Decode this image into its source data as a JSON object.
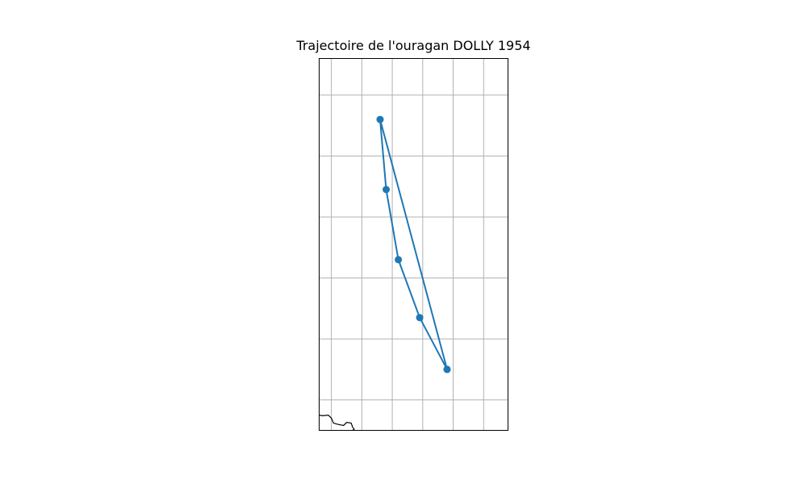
{
  "chart_data": {
    "type": "line",
    "title": "Trajectoire de l'ouragan DOLLY 1954",
    "xlabel": "",
    "ylabel": "",
    "grid": true,
    "xlim": [
      -76.4,
      -70.2
    ],
    "ylim": [
      22.5,
      28.6
    ],
    "gridlines_x": [
      -76,
      -75,
      -74,
      -73,
      -72,
      -71
    ],
    "gridlines_y": [
      23,
      24,
      25,
      26,
      27,
      28
    ],
    "series": [
      {
        "color": "#1f77b4",
        "points": [
          {
            "lon": -72.2,
            "lat": 23.5
          },
          {
            "lon": -73.1,
            "lat": 24.35
          },
          {
            "lon": -73.8,
            "lat": 25.3
          },
          {
            "lon": -74.2,
            "lat": 26.45
          },
          {
            "lon": -74.4,
            "lat": 27.6
          },
          {
            "lon": -72.2,
            "lat": 23.5
          }
        ]
      }
    ],
    "coastline": [
      {
        "lon": -76.4,
        "lat": 22.75
      },
      {
        "lon": -76.3,
        "lat": 22.74
      },
      {
        "lon": -76.1,
        "lat": 22.75
      },
      {
        "lon": -76.0,
        "lat": 22.7
      },
      {
        "lon": -75.93,
        "lat": 22.62
      },
      {
        "lon": -75.8,
        "lat": 22.6
      },
      {
        "lon": -75.6,
        "lat": 22.58
      },
      {
        "lon": -75.5,
        "lat": 22.63
      },
      {
        "lon": -75.35,
        "lat": 22.62
      },
      {
        "lon": -75.3,
        "lat": 22.55
      },
      {
        "lon": -75.25,
        "lat": 22.52
      },
      {
        "lon": -75.3,
        "lat": 22.5
      }
    ]
  }
}
